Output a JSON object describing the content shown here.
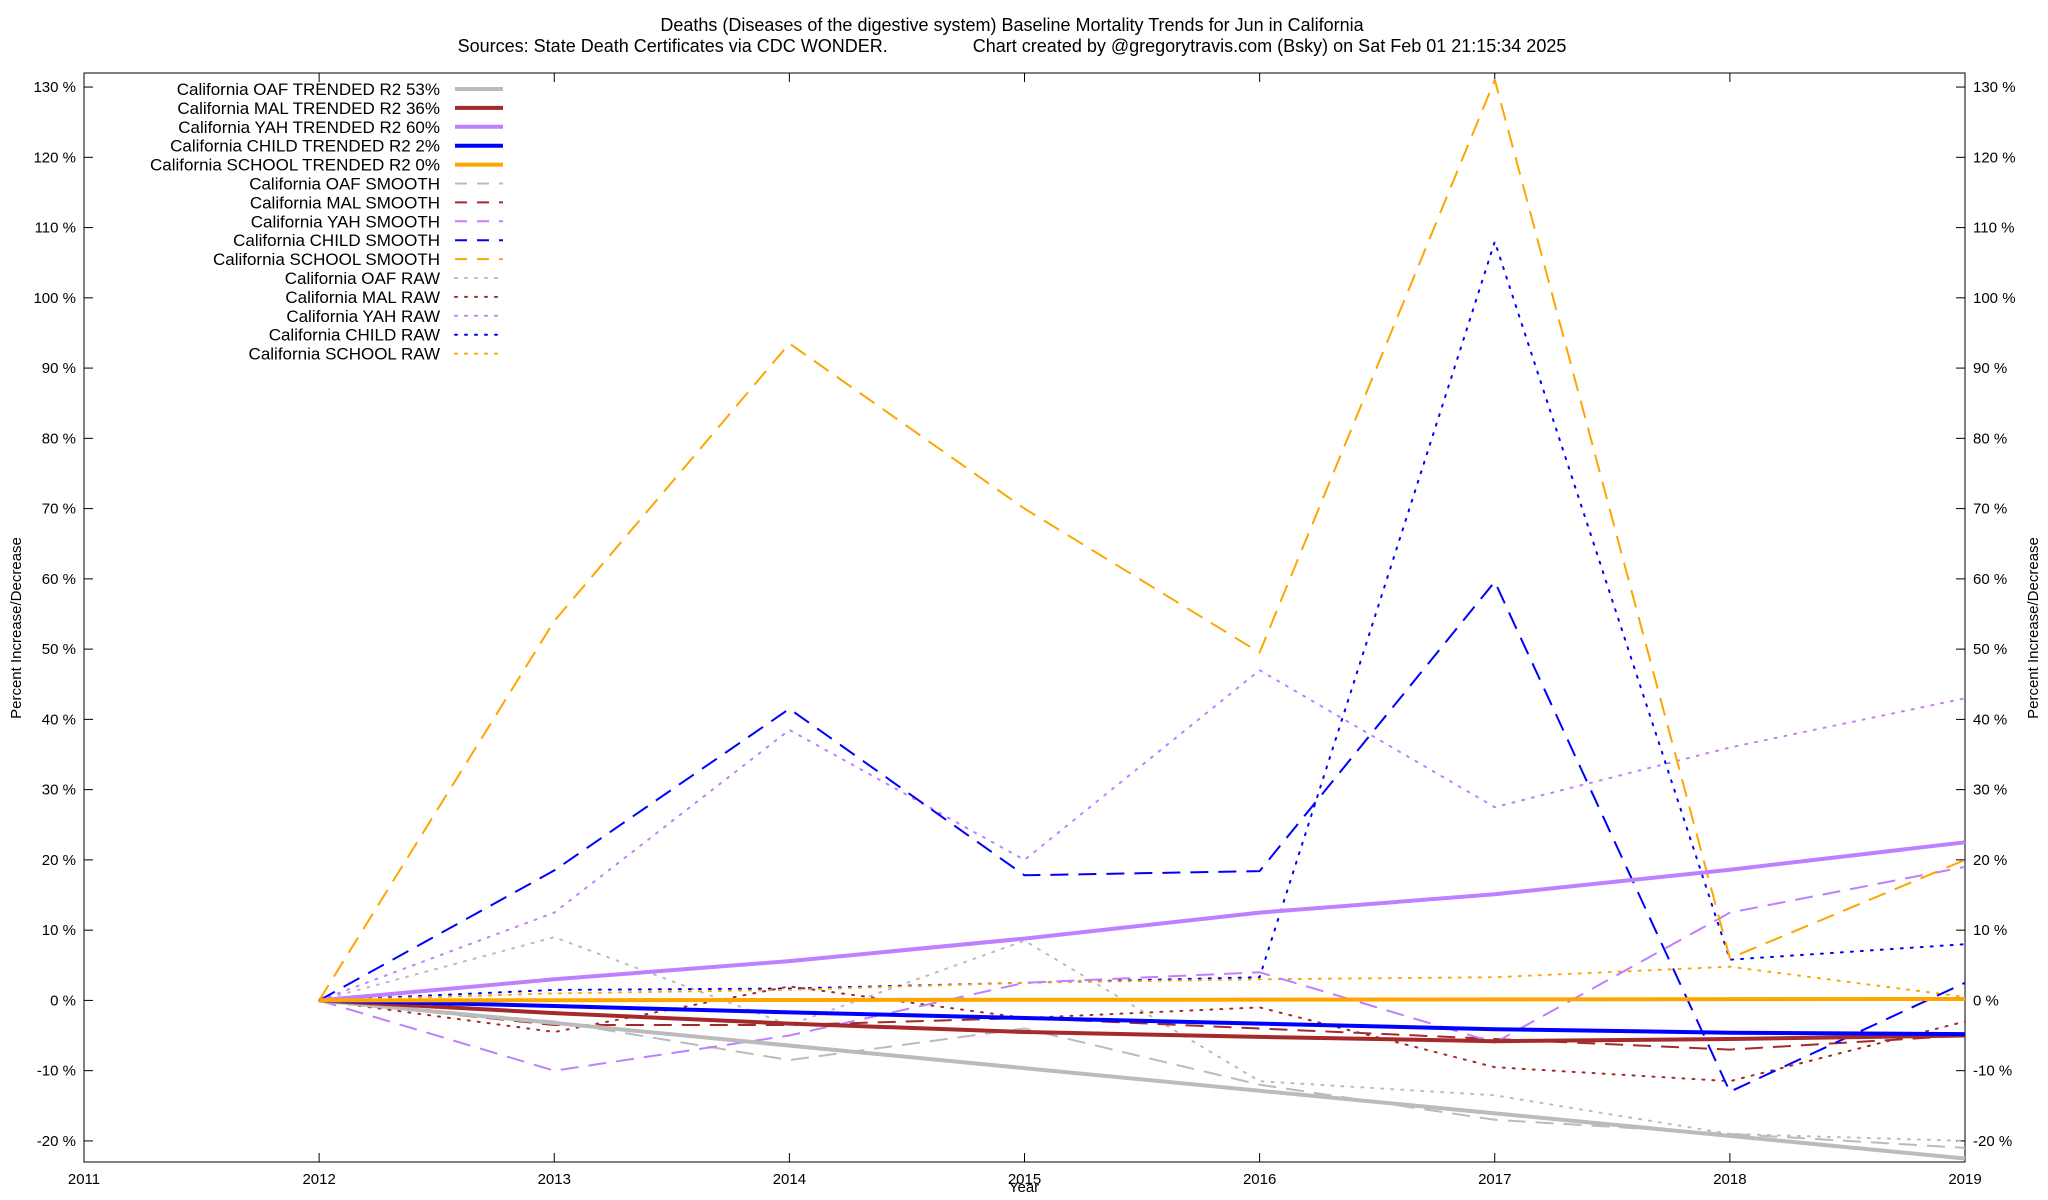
{
  "chart_data": {
    "type": "line",
    "title": "Deaths (Diseases of the digestive system)  Baseline Mortality Trends for Jun in California",
    "subtitle": "Sources: State Death Certificates via CDC WONDER.                 Chart created by @gregorytravis.com (Bsky) on Sat Feb 01 21:15:34 2025",
    "xlabel": "Year",
    "ylabel": "Percent Increase/Decrease",
    "y2label": "Percent Increase/Decrease",
    "xlim": [
      2011,
      2019
    ],
    "ylim": [
      -23,
      132
    ],
    "x_ticks": [
      "2011",
      "2012",
      "2013",
      "2014",
      "2015",
      "2016",
      "2017",
      "2018",
      "2019"
    ],
    "y_ticks": [
      -20,
      -10,
      0,
      10,
      20,
      30,
      40,
      50,
      60,
      70,
      80,
      90,
      100,
      110,
      120,
      130
    ],
    "y_tick_suffix": " %",
    "grid": false,
    "legend_position": "top-left",
    "series": [
      {
        "name": "California OAF TRENDED R2  53%",
        "color": "#bbbbbb",
        "style": "solid",
        "width": 4,
        "x": [
          2012,
          2019
        ],
        "y": [
          0,
          -22.5
        ]
      },
      {
        "name": "California MAL TRENDED R2  36%",
        "color": "#a52a2a",
        "style": "solid",
        "width": 4,
        "x": [
          2012,
          2013,
          2014,
          2015,
          2016,
          2017,
          2018,
          2019
        ],
        "y": [
          0,
          -1.8,
          -3.3,
          -4.5,
          -5.2,
          -5.8,
          -5.5,
          -5.0
        ]
      },
      {
        "name": "California YAH TRENDED R2  60%",
        "color": "#bf7fff",
        "style": "solid",
        "width": 4,
        "x": [
          2012,
          2013,
          2014,
          2015,
          2016,
          2017,
          2018,
          2019
        ],
        "y": [
          0,
          3,
          5.6,
          8.8,
          12.5,
          15.1,
          18.6,
          22.5
        ]
      },
      {
        "name": "California CHILD TRENDED R2   2%",
        "color": "#0000ff",
        "style": "solid",
        "width": 4,
        "x": [
          2012,
          2013,
          2014,
          2015,
          2016,
          2017,
          2018,
          2019
        ],
        "y": [
          0,
          -0.8,
          -1.7,
          -2.5,
          -3.3,
          -4.1,
          -4.6,
          -4.8
        ]
      },
      {
        "name": "California SCHOOL TRENDED R2   0%",
        "color": "#ffa500",
        "style": "solid",
        "width": 4,
        "x": [
          2012,
          2019
        ],
        "y": [
          0,
          0.2
        ]
      },
      {
        "name": "California OAF SMOOTH",
        "color": "#bbbbbb",
        "style": "dashed",
        "width": 2,
        "x": [
          2012,
          2013,
          2014,
          2015,
          2016,
          2017,
          2018,
          2019
        ],
        "y": [
          0,
          -3,
          -8.5,
          -4,
          -12,
          -17,
          -19,
          -21
        ]
      },
      {
        "name": "California MAL SMOOTH",
        "color": "#a52a2a",
        "style": "dashed",
        "width": 2,
        "x": [
          2012,
          2013,
          2014,
          2015,
          2016,
          2017,
          2018,
          2019
        ],
        "y": [
          0,
          -3.5,
          -3.5,
          -2.5,
          -4,
          -5.5,
          -7,
          -5
        ]
      },
      {
        "name": "California YAH SMOOTH",
        "color": "#bf7fff",
        "style": "dashed",
        "width": 2,
        "x": [
          2012,
          2013,
          2014,
          2015,
          2016,
          2017,
          2018,
          2019
        ],
        "y": [
          0,
          -10,
          -5,
          2.5,
          4,
          -6,
          12.5,
          19
        ]
      },
      {
        "name": "California CHILD SMOOTH",
        "color": "#0000ff",
        "style": "dashed",
        "width": 2,
        "x": [
          2012,
          2013,
          2014,
          2015,
          2016,
          2017,
          2018,
          2019
        ],
        "y": [
          0,
          18.5,
          41.5,
          17.8,
          18.4,
          59.6,
          -13,
          2.5
        ]
      },
      {
        "name": "California SCHOOL SMOOTH",
        "color": "#ffa500",
        "style": "dashed",
        "width": 2,
        "x": [
          2012,
          2013,
          2014,
          2015,
          2016,
          2017,
          2018,
          2019
        ],
        "y": [
          0,
          54,
          93.5,
          70,
          49.5,
          131,
          6,
          20
        ]
      },
      {
        "name": "California OAF RAW",
        "color": "#bbbbbb",
        "style": "dotted",
        "width": 2,
        "x": [
          2012,
          2013,
          2014,
          2015,
          2016,
          2017,
          2018,
          2019
        ],
        "y": [
          0,
          9,
          -3.5,
          8.5,
          -11.5,
          -13.5,
          -19,
          -20
        ]
      },
      {
        "name": "California MAL RAW",
        "color": "#a52a2a",
        "style": "dotted",
        "width": 2,
        "x": [
          2012,
          2013,
          2014,
          2015,
          2016,
          2017,
          2018,
          2019
        ],
        "y": [
          0,
          -4.5,
          2,
          -2.5,
          -1,
          -9.5,
          -11.5,
          -3
        ]
      },
      {
        "name": "California YAH RAW",
        "color": "#bf7fff",
        "style": "dotted",
        "width": 2,
        "x": [
          2012,
          2013,
          2014,
          2015,
          2016,
          2017,
          2018,
          2019
        ],
        "y": [
          0,
          12.5,
          38.5,
          20,
          47,
          27.5,
          36,
          43
        ]
      },
      {
        "name": "California CHILD RAW",
        "color": "#0000ff",
        "style": "dotted",
        "width": 2,
        "x": [
          2012,
          2013,
          2014,
          2015,
          2016,
          2017,
          2018,
          2019
        ],
        "y": [
          0,
          1.5,
          1.7,
          2.5,
          3.3,
          108,
          5.8,
          8
        ]
      },
      {
        "name": "California SCHOOL RAW",
        "color": "#ffa500",
        "style": "dotted",
        "width": 2,
        "x": [
          2012,
          2013,
          2014,
          2015,
          2016,
          2017,
          2018,
          2019
        ],
        "y": [
          0,
          1,
          1.5,
          2.5,
          3,
          3.3,
          4.8,
          0.5
        ]
      }
    ]
  }
}
